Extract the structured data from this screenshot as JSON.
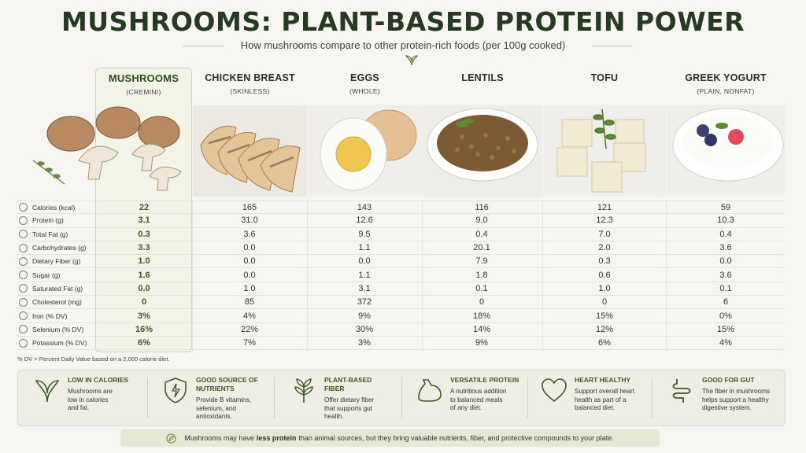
{
  "title": "MUSHROOMS: PLANT-BASED PROTEIN POWER",
  "subtitle": "How mushrooms compare to other protein-rich foods (per 100g cooked)",
  "columns": [
    {
      "name": "MUSHROOMS",
      "sub": "(CREMINI)"
    },
    {
      "name": "CHICKEN BREAST",
      "sub": "(SKINLESS)"
    },
    {
      "name": "EGGS",
      "sub": "(WHOLE)"
    },
    {
      "name": "LENTILS",
      "sub": ""
    },
    {
      "name": "TOFU",
      "sub": ""
    },
    {
      "name": "GREEK YOGURT",
      "sub": "(PLAIN, NONFAT)"
    }
  ],
  "rows": [
    {
      "label": "Calories (kcal)",
      "icon": "flame-icon",
      "values": [
        "22",
        "165",
        "143",
        "116",
        "121",
        "59"
      ]
    },
    {
      "label": "Protein (g)",
      "icon": "protein-icon",
      "values": [
        "3.1",
        "31.0",
        "12.6",
        "9.0",
        "12.3",
        "10.3"
      ]
    },
    {
      "label": "Total Fat (g)",
      "icon": "drop-icon",
      "values": [
        "0.3",
        "3.6",
        "9.5",
        "0.4",
        "7.0",
        "0.4"
      ]
    },
    {
      "label": "Carbohydrates (g)",
      "icon": "grain-icon",
      "values": [
        "3.3",
        "0.0",
        "1.1",
        "20.1",
        "2.0",
        "3.6"
      ]
    },
    {
      "label": "Dietary Fiber (g)",
      "icon": "leaf-icon",
      "values": [
        "1.0",
        "0.0",
        "0.0",
        "7.9",
        "0.3",
        "0.0"
      ]
    },
    {
      "label": "Sugar (g)",
      "icon": "sugar-icon",
      "values": [
        "1.6",
        "0.0",
        "1.1",
        "1.8",
        "0.6",
        "3.6"
      ]
    },
    {
      "label": "Saturated Fat (g)",
      "icon": "fat-icon",
      "values": [
        "0.0",
        "1.0",
        "3.1",
        "0.1",
        "1.0",
        "0.1"
      ]
    },
    {
      "label": "Cholesterol (mg)",
      "icon": "heart-icon",
      "values": [
        "0",
        "85",
        "372",
        "0",
        "0",
        "6"
      ]
    },
    {
      "label": "Iron (% DV)",
      "icon": "iron-icon",
      "values": [
        "3%",
        "4%",
        "9%",
        "18%",
        "15%",
        "0%"
      ]
    },
    {
      "label": "Selenium (% DV)",
      "icon": "selenium-icon",
      "values": [
        "16%",
        "22%",
        "30%",
        "14%",
        "12%",
        "15%"
      ]
    },
    {
      "label": "Potassium (% DV)",
      "icon": "potassium-icon",
      "values": [
        "6%",
        "7%",
        "3%",
        "9%",
        "6%",
        "4%"
      ]
    }
  ],
  "footnote": "% DV = Percent Daily Value based on a 2,000 calorie diet.",
  "benefits": [
    {
      "title_lines": [
        "LOW IN CALORIES"
      ],
      "text_lines": [
        "Mushrooms are",
        "low in calories",
        "and fat."
      ],
      "icon": "leaf-icon"
    },
    {
      "title_lines": [
        "GOOD SOURCE OF",
        "NUTRIENTS"
      ],
      "text_lines": [
        "Provide B vitamins,",
        "selenium, and",
        "antioxidants."
      ],
      "icon": "shield-icon"
    },
    {
      "title_lines": [
        "PLANT-BASED",
        "FIBER"
      ],
      "text_lines": [
        "Offer dietary fiber",
        "that supports gut",
        "health."
      ],
      "icon": "plant-icon"
    },
    {
      "title_lines": [
        "VERSATILE PROTEIN"
      ],
      "text_lines": [
        "A nutritious addition",
        "to balanced meals",
        "of any diet."
      ],
      "icon": "muscle-icon"
    },
    {
      "title_lines": [
        "HEART HEALTHY"
      ],
      "text_lines": [
        "Support overall heart",
        "health as part of a",
        "balanced diet."
      ],
      "icon": "heart-icon"
    },
    {
      "title_lines": [
        "GOOD FOR GUT"
      ],
      "text_lines": [
        "The fiber in mushrooms",
        "helps support a healthy",
        "digestive system."
      ],
      "icon": "gut-icon"
    }
  ],
  "bottom": {
    "pre": "Mushrooms may have",
    "bold": "less protein",
    "post": "than animal sources, but they bring valuable nutrients, fiber, and protective compounds to your plate."
  },
  "colors": {
    "accent": "#3e5a22",
    "highlight": "#f1f4e7",
    "background": "#f6f5f1"
  }
}
